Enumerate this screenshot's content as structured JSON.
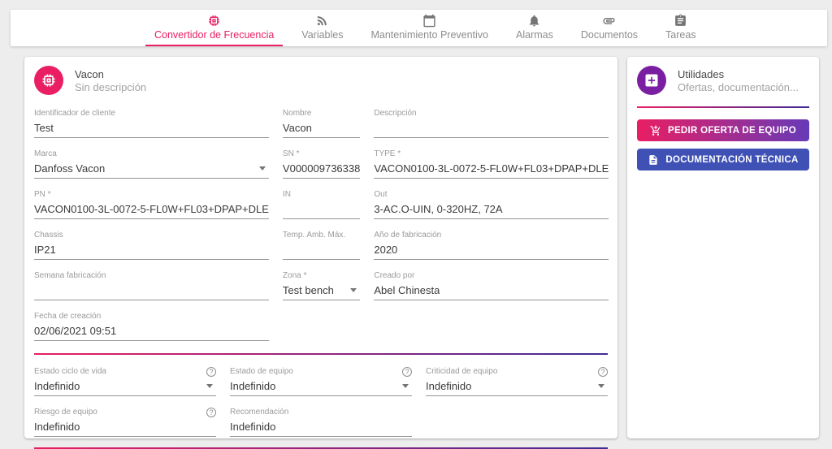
{
  "nav": {
    "tabs": [
      {
        "label": "Convertidor de Frecuencia",
        "icon": "chip-icon",
        "active": true
      },
      {
        "label": "Variables",
        "icon": "rss-icon",
        "active": false
      },
      {
        "label": "Mantenimiento Preventivo",
        "icon": "calendar-icon",
        "active": false
      },
      {
        "label": "Alarmas",
        "icon": "bell-icon",
        "active": false
      },
      {
        "label": "Documentos",
        "icon": "paperclip-icon",
        "active": false
      },
      {
        "label": "Tareas",
        "icon": "clipboard-icon",
        "active": false
      }
    ]
  },
  "equipment_card": {
    "title": "Vacon",
    "subtitle": "Sin descripción",
    "avatar_icon": "chip-icon",
    "sections": [
      {
        "fields": [
          {
            "label": "Identificador de cliente",
            "value": "Test"
          },
          {
            "label": "Nombre",
            "value": "Vacon"
          },
          {
            "label": "Descripción",
            "value": ""
          },
          {
            "label": "Marca",
            "value": "Danfoss Vacon",
            "control": "select"
          },
          {
            "label": "SN",
            "required": true,
            "value": "V000009736338"
          },
          {
            "label": "TYPE",
            "required": true,
            "value": "VACON0100-3L-0072-5-FL0W+FL03+DPAP+DLE"
          },
          {
            "label": "PN",
            "required": true,
            "value": "VACON0100-3L-0072-5-FL0W+FL03+DPAP+DLE"
          },
          {
            "label": "IN",
            "value": ""
          },
          {
            "label": "Out",
            "value": "3-AC.O-UIN, 0-320HZ, 72A"
          },
          {
            "label": "Chassis",
            "value": "IP21"
          },
          {
            "label": "Temp. Amb. Máx.",
            "value": ""
          },
          {
            "label": "Año de fabricación",
            "value": "2020"
          },
          {
            "label": "Semana fabricación",
            "value": ""
          },
          {
            "label": "Zona",
            "required": true,
            "value": "Test bench",
            "control": "select"
          },
          {
            "label": "Creado por",
            "value": "Abel Chinesta"
          },
          {
            "label": "Fecha de creación",
            "value": "02/06/2021 09:51"
          }
        ]
      },
      {
        "fields": [
          {
            "label": "Estado ciclo de vida",
            "value": "Indefinido",
            "control": "select",
            "help": true
          },
          {
            "label": "Estado de equipo",
            "value": "Indefinido",
            "control": "select",
            "help": true
          },
          {
            "label": "Criticidad de equipo",
            "value": "Indefinido",
            "control": "select",
            "help": true
          },
          {
            "label": "Riesgo de equipo",
            "value": "Indefinido",
            "help": true
          },
          {
            "label": "Recomendación",
            "value": "Indefinido"
          }
        ]
      }
    ]
  },
  "utilities_card": {
    "title": "Utilidades",
    "subtitle": "Ofertas, documentación...",
    "avatar_icon": "add-box-icon",
    "buttons": [
      {
        "label": "PEDIR OFERTA DE EQUIPO",
        "icon": "cart-plus-icon"
      },
      {
        "label": "DOCUMENTACIÓN TÉCNICA",
        "icon": "document-icon"
      }
    ]
  },
  "colors": {
    "accent_pink": "#e91e63",
    "utilities_purple": "#7b1fa2",
    "docs_button_indigo": "#3f51b5",
    "divider_gradient_end": "#3f2b96",
    "background_gray": "#ededed"
  }
}
